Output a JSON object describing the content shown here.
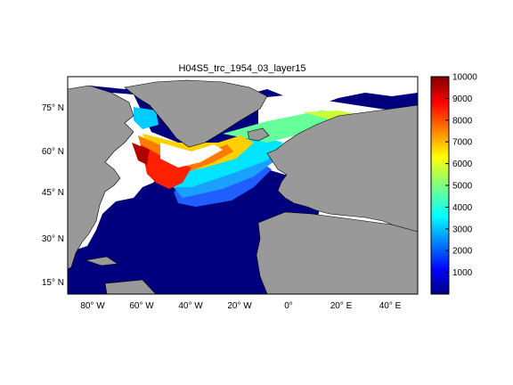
{
  "title": "H04S5_trc_1954_03_layer15",
  "lat_labels": [
    "75° N",
    "60° N",
    "45° N",
    "30° N",
    "15° N"
  ],
  "lon_labels": [
    "80° W",
    "60° W",
    "40° W",
    "20° W",
    "0°",
    "20° E",
    "40° E"
  ],
  "colorbar": {
    "colormap": "jet",
    "range": [
      0,
      10000
    ],
    "tick_labels": [
      "1000",
      "2000",
      "3000",
      "4000",
      "5000",
      "6000",
      "7000",
      "8000",
      "9000",
      "10000"
    ]
  },
  "colors": {
    "land": "#999999",
    "ocean_low": "#00007f",
    "missing": "#ffffff",
    "coastline": "#000000"
  }
}
